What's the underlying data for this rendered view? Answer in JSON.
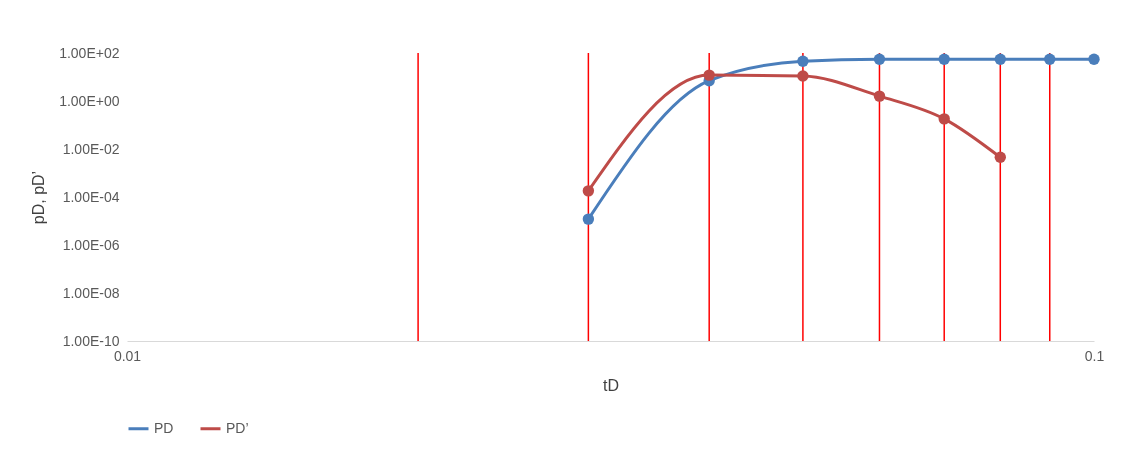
{
  "chart_data": {
    "type": "line",
    "xlabel": "tD",
    "ylabel": "pD, pD’",
    "log": "xy",
    "grid": false,
    "legend": "bottom",
    "marker": "circle",
    "line_style": "solid",
    "x": [
      0.03,
      0.04,
      0.05,
      0.06,
      0.07,
      0.08,
      0.09,
      0.1
    ],
    "xlim": [
      0.01,
      0.1
    ],
    "xticks": [
      0.01,
      0.1
    ],
    "ylim": [
      1e-10,
      100
    ],
    "yticks": [
      {
        "value": 1e-10,
        "label": "1.00E-10"
      },
      {
        "value": 1e-08,
        "label": "1.00E-08"
      },
      {
        "value": 1e-06,
        "label": "1.00E-06"
      },
      {
        "value": 0.0001,
        "label": "1.00E-04"
      },
      {
        "value": 0.01,
        "label": "1.00E-02"
      },
      {
        "value": 1,
        "label": "1.00E+00"
      },
      {
        "value": 100,
        "label": "1.00E+02"
      }
    ],
    "series": [
      {
        "name": "PD",
        "color": "#4a7ebb",
        "values": [
          1.2e-05,
          7,
          45,
          55,
          55,
          55,
          55,
          55
        ]
      },
      {
        "name": "PD’",
        "color": "#be4b48",
        "values": [
          0.00018,
          12,
          11,
          1.6,
          0.18,
          0.0045,
          null,
          null
        ]
      }
    ],
    "ref_lines": [
      {
        "axis": "x",
        "value": 0.02,
        "color": "#ff0000"
      },
      {
        "axis": "x",
        "value": 0.03,
        "color": "#ff0000"
      },
      {
        "axis": "x",
        "value": 0.04,
        "color": "#ff0000"
      },
      {
        "axis": "x",
        "value": 0.05,
        "color": "#ff0000"
      },
      {
        "axis": "x",
        "value": 0.06,
        "color": "#ff0000"
      },
      {
        "axis": "x",
        "value": 0.07,
        "color": "#ff0000"
      },
      {
        "axis": "x",
        "value": 0.08,
        "color": "#ff0000"
      },
      {
        "axis": "x",
        "value": 0.09,
        "color": "#ff0000"
      }
    ]
  }
}
